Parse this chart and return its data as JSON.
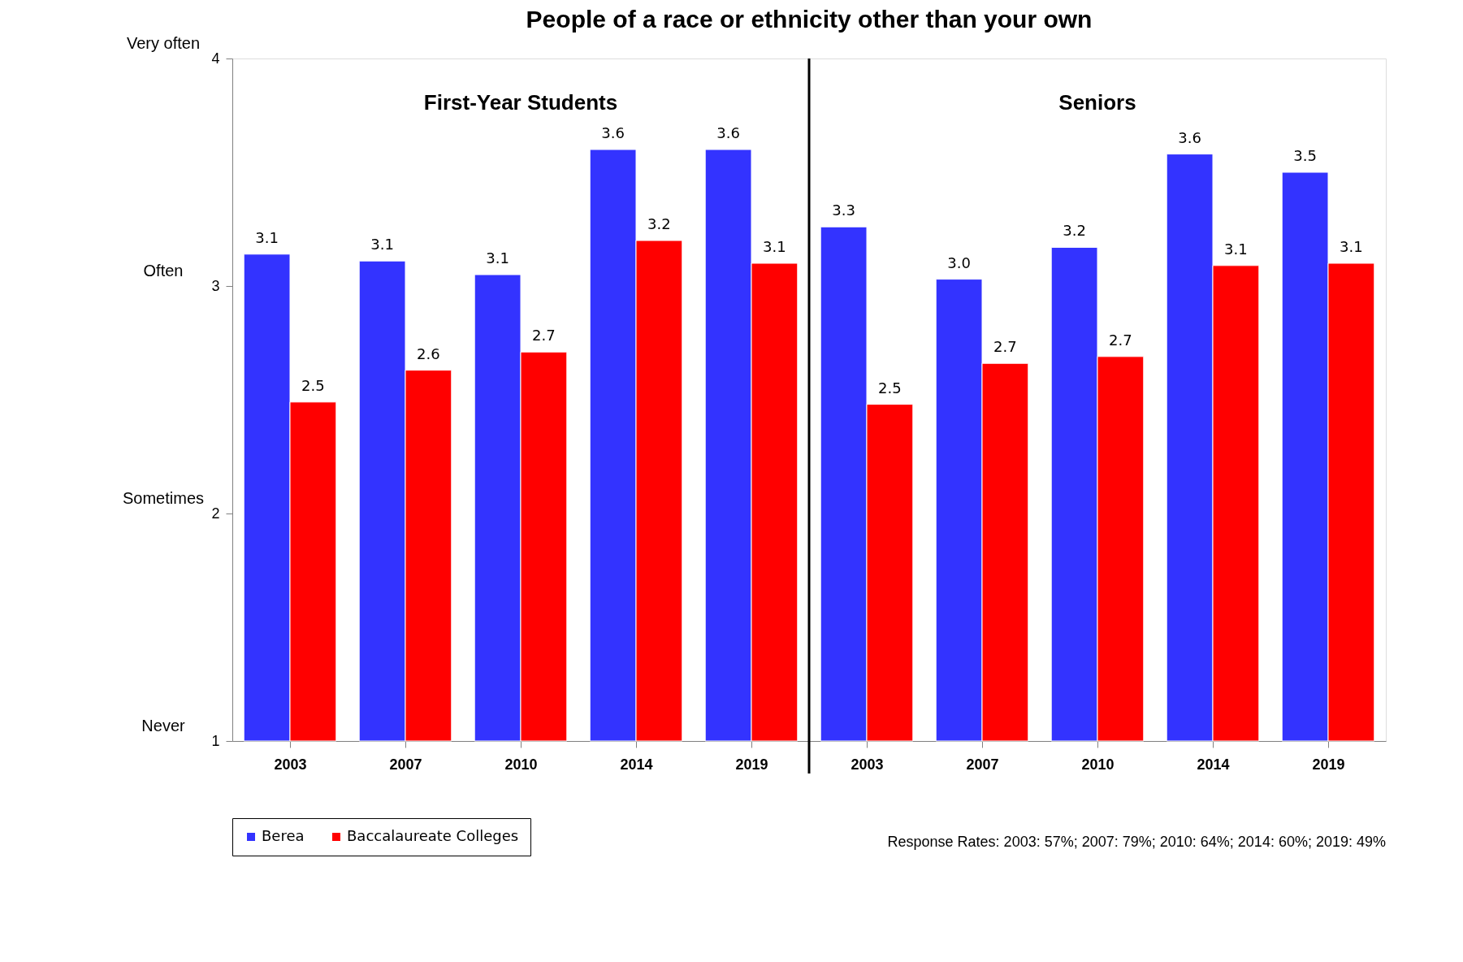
{
  "chart_data": {
    "type": "bar",
    "title": "People of a race or ethnicity other than your own",
    "categories": [
      "2003",
      "2007",
      "2010",
      "2014",
      "2019",
      "2003",
      "2007",
      "2010",
      "2014",
      "2019"
    ],
    "series": [
      {
        "name": "Berea",
        "color": "#3333ff",
        "values": [
          3.14,
          3.11,
          3.05,
          3.6,
          3.6,
          3.26,
          3.03,
          3.17,
          3.58,
          3.5
        ],
        "value_labels": [
          "3.1",
          "3.1",
          "3.1",
          "3.6",
          "3.6",
          "3.3",
          "3.0",
          "3.2",
          "3.6",
          "3.5"
        ]
      },
      {
        "name": "Baccalaureate Colleges",
        "color": "#ff0000",
        "values": [
          2.49,
          2.63,
          2.71,
          3.2,
          3.1,
          2.48,
          2.66,
          2.69,
          3.09,
          3.1
        ],
        "value_labels": [
          "2.5",
          "2.6",
          "2.7",
          "3.2",
          "3.1",
          "2.5",
          "2.7",
          "2.7",
          "3.1",
          "3.1"
        ]
      }
    ],
    "ylim": [
      1,
      4
    ],
    "yticks": [
      1,
      2,
      3,
      4
    ],
    "grid": false,
    "legend": "bottom left",
    "annotations": [
      "First-Year Students",
      "Seniors",
      "Very often",
      "Often",
      "Sometimes",
      "Never",
      "Response Rates: 2003: 57%; 2007: 79%; 2010: 64%; 2014: 60%; 2019: 49%"
    ]
  }
}
